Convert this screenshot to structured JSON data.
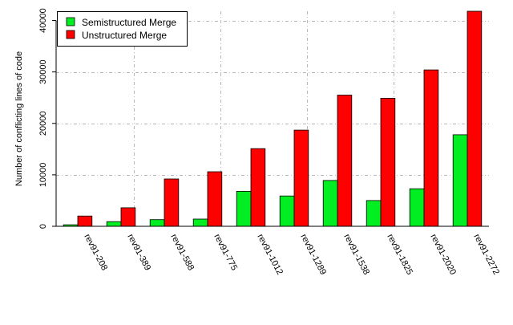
{
  "chart_data": {
    "type": "bar",
    "title": "",
    "xlabel": "",
    "ylabel": "Number of conflicting lines of code",
    "categories": [
      "rev91-208",
      "rev91-389",
      "rev91-588",
      "rev91-775",
      "rev91-1012",
      "rev91-1289",
      "rev91-1538",
      "rev91-1825",
      "rev91-2020",
      "rev91-2272"
    ],
    "series": [
      {
        "name": "Semistructured Merge",
        "color": "#00ee22",
        "values": [
          300,
          900,
          1300,
          1400,
          6800,
          5900,
          8900,
          5000,
          7300,
          17800
        ]
      },
      {
        "name": "Unstructured Merge",
        "color": "#ff0000",
        "values": [
          2000,
          3600,
          9200,
          10600,
          15100,
          18700,
          25500,
          24900,
          30400,
          41800
        ]
      }
    ],
    "ylim": [
      0,
      41800
    ],
    "yticks": [
      0,
      10000,
      20000,
      30000,
      40000
    ],
    "grid": true,
    "legend_position": "top-left"
  }
}
